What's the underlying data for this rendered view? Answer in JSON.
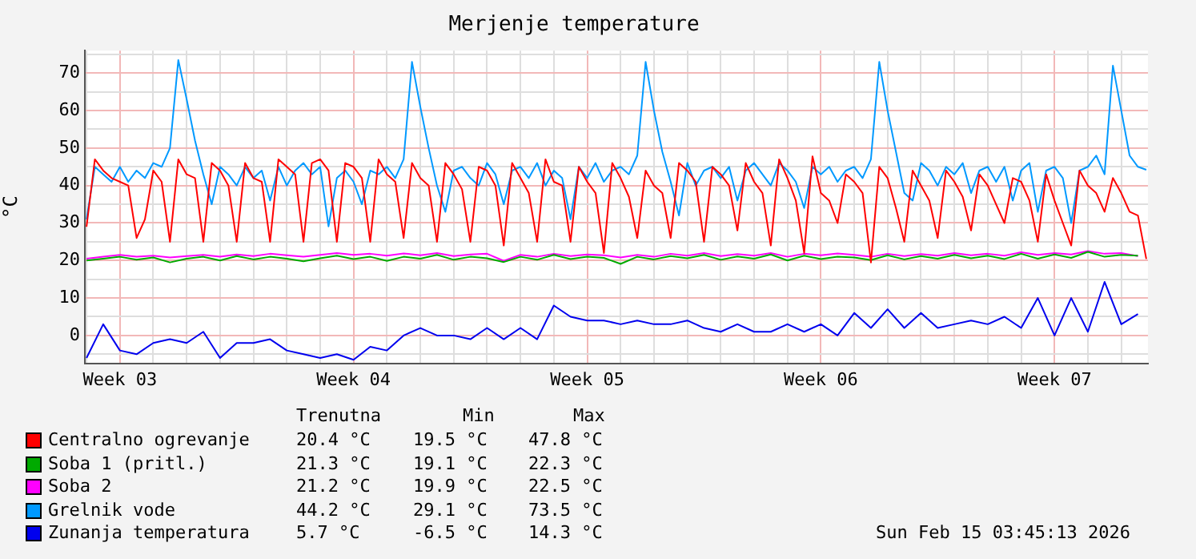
{
  "chart_data": {
    "type": "line",
    "title": "Merjenje temperature",
    "ylabel": "°C",
    "x": [
      "2026-01-11",
      "2026-01-11T06:00",
      "2026-01-11T12:00",
      "2026-01-11T18:00",
      "2026-01-12",
      "2026-01-12T06:00",
      "2026-01-12T12:00",
      "2026-01-12T18:00",
      "2026-01-13",
      "2026-01-13T06:00",
      "2026-01-13T12:00",
      "2026-01-13T18:00",
      "2026-01-14",
      "2026-01-14T06:00",
      "2026-01-14T12:00",
      "2026-01-14T18:00",
      "2026-01-15",
      "2026-01-15T06:00",
      "2026-01-15T12:00",
      "2026-01-15T18:00",
      "2026-01-16",
      "2026-01-16T06:00",
      "2026-01-16T12:00",
      "2026-01-16T18:00",
      "2026-01-17",
      "2026-01-17T06:00",
      "2026-01-17T12:00",
      "2026-01-17T18:00",
      "2026-01-18",
      "2026-01-18T06:00",
      "2026-01-18T12:00",
      "2026-01-18T18:00",
      "2026-01-19",
      "2026-01-19T06:00",
      "2026-01-19T12:00",
      "2026-01-19T18:00",
      "2026-01-20",
      "2026-01-20T06:00",
      "2026-01-20T12:00",
      "2026-01-20T18:00",
      "2026-01-21",
      "2026-01-21T06:00",
      "2026-01-21T12:00",
      "2026-01-21T18:00",
      "2026-01-22",
      "2026-01-22T06:00",
      "2026-01-22T12:00",
      "2026-01-22T18:00",
      "2026-01-23",
      "2026-01-23T06:00",
      "2026-01-23T12:00",
      "2026-01-23T18:00",
      "2026-01-24",
      "2026-01-24T06:00",
      "2026-01-24T12:00",
      "2026-01-24T18:00",
      "2026-01-25",
      "2026-01-25T06:00",
      "2026-01-25T12:00",
      "2026-01-25T18:00",
      "2026-01-26",
      "2026-01-26T06:00",
      "2026-01-26T12:00",
      "2026-01-26T18:00",
      "2026-01-27",
      "2026-01-27T06:00",
      "2026-01-27T12:00",
      "2026-01-27T18:00",
      "2026-01-28",
      "2026-01-28T06:00",
      "2026-01-28T12:00",
      "2026-01-28T18:00",
      "2026-01-29",
      "2026-01-29T06:00",
      "2026-01-29T12:00",
      "2026-01-29T18:00",
      "2026-01-30",
      "2026-01-30T06:00",
      "2026-01-30T12:00",
      "2026-01-30T18:00",
      "2026-01-31",
      "2026-01-31T06:00",
      "2026-01-31T12:00",
      "2026-01-31T18:00",
      "2026-02-01",
      "2026-02-01T06:00",
      "2026-02-01T12:00",
      "2026-02-01T18:00",
      "2026-02-02",
      "2026-02-02T06:00",
      "2026-02-02T12:00",
      "2026-02-02T18:00",
      "2026-02-03",
      "2026-02-03T06:00",
      "2026-02-03T12:00",
      "2026-02-03T18:00",
      "2026-02-04",
      "2026-02-04T06:00",
      "2026-02-04T12:00",
      "2026-02-04T18:00",
      "2026-02-05",
      "2026-02-05T06:00",
      "2026-02-05T12:00",
      "2026-02-05T18:00",
      "2026-02-06",
      "2026-02-06T06:00",
      "2026-02-06T12:00",
      "2026-02-06T18:00",
      "2026-02-07",
      "2026-02-07T06:00",
      "2026-02-07T12:00",
      "2026-02-07T18:00",
      "2026-02-08",
      "2026-02-08T06:00",
      "2026-02-08T12:00",
      "2026-02-08T18:00",
      "2026-02-09",
      "2026-02-09T06:00",
      "2026-02-09T12:00",
      "2026-02-09T18:00",
      "2026-02-10",
      "2026-02-10T06:00",
      "2026-02-10T12:00",
      "2026-02-10T18:00",
      "2026-02-11",
      "2026-02-11T06:00",
      "2026-02-11T12:00",
      "2026-02-11T18:00"
    ],
    "series": [
      {
        "name": "Centralno ogrevanje",
        "color": "#ff0000",
        "values": [
          29,
          47,
          44,
          42,
          41,
          40,
          26,
          31,
          44,
          41,
          25,
          47,
          43,
          42,
          25,
          46,
          44,
          40,
          25,
          46,
          42,
          41,
          25,
          47,
          45,
          43,
          25,
          46,
          47,
          44,
          25,
          46,
          45,
          42,
          25,
          47,
          43,
          41,
          26,
          46,
          42,
          40,
          25,
          46,
          43,
          39,
          25,
          45,
          44,
          40,
          24,
          46,
          42,
          38,
          25,
          47,
          41,
          40,
          25,
          45,
          41,
          38,
          22,
          46,
          42,
          37,
          26,
          44,
          40,
          38,
          26,
          46,
          44,
          41,
          25,
          45,
          43,
          40,
          28,
          46,
          41,
          38,
          24,
          47,
          42,
          36,
          22,
          47.8,
          38,
          36,
          30,
          43,
          41,
          38,
          19.5,
          45,
          42,
          34,
          25,
          44,
          40,
          36,
          26,
          44,
          41,
          37,
          28,
          43,
          40,
          35,
          30,
          42,
          41,
          36,
          25,
          43,
          36,
          30,
          24,
          44,
          40,
          38,
          33,
          42,
          38,
          33,
          32,
          20.4
        ]
      },
      {
        "name": "Soba 1 (pritl.)",
        "color": "#00aa00",
        "x": [
          "2026-01-11",
          "2026-01-11T12:00",
          "2026-01-12",
          "2026-01-12T12:00",
          "2026-01-13",
          "2026-01-13T12:00",
          "2026-01-14",
          "2026-01-14T12:00",
          "2026-01-15",
          "2026-01-15T12:00",
          "2026-01-16",
          "2026-01-16T12:00",
          "2026-01-17",
          "2026-01-17T12:00",
          "2026-01-18",
          "2026-01-18T12:00",
          "2026-01-19",
          "2026-01-19T12:00",
          "2026-01-20",
          "2026-01-20T12:00",
          "2026-01-21",
          "2026-01-21T12:00",
          "2026-01-22",
          "2026-01-22T12:00",
          "2026-01-23",
          "2026-01-23T12:00",
          "2026-01-24",
          "2026-01-24T12:00",
          "2026-01-25",
          "2026-01-25T12:00",
          "2026-01-26",
          "2026-01-26T12:00",
          "2026-01-27",
          "2026-01-27T12:00",
          "2026-01-28",
          "2026-01-28T12:00",
          "2026-01-29",
          "2026-01-29T12:00",
          "2026-01-30",
          "2026-01-30T12:00",
          "2026-01-31",
          "2026-01-31T12:00",
          "2026-02-01",
          "2026-02-01T12:00",
          "2026-02-02",
          "2026-02-02T12:00",
          "2026-02-03",
          "2026-02-03T12:00",
          "2026-02-04",
          "2026-02-04T12:00",
          "2026-02-05",
          "2026-02-05T12:00",
          "2026-02-06",
          "2026-02-06T12:00",
          "2026-02-07",
          "2026-02-07T12:00",
          "2026-02-08",
          "2026-02-08T12:00",
          "2026-02-09",
          "2026-02-09T12:00",
          "2026-02-10",
          "2026-02-10T12:00",
          "2026-02-11",
          "2026-02-11T12:00"
        ],
        "values": [
          20.0,
          20.5,
          21.0,
          20.2,
          20.8,
          19.5,
          20.5,
          21.0,
          20.0,
          21.2,
          20.3,
          21.0,
          20.5,
          19.8,
          20.6,
          21.3,
          20.4,
          21.0,
          19.9,
          21.0,
          20.5,
          21.5,
          20.2,
          21.0,
          20.6,
          19.6,
          21.0,
          20.2,
          21.5,
          20.4,
          21.0,
          20.7,
          19.1,
          21.0,
          20.3,
          21.2,
          20.6,
          21.5,
          20.2,
          21.1,
          20.5,
          21.6,
          20.0,
          21.3,
          20.4,
          21.0,
          20.8,
          20.1,
          21.4,
          20.3,
          21.2,
          20.5,
          21.5,
          20.6,
          21.3,
          20.4,
          21.8,
          20.5,
          21.6,
          20.7,
          22.3,
          21.0,
          21.5,
          21.3
        ]
      },
      {
        "name": "Soba 2",
        "color": "#ff00ff",
        "x": [
          "2026-01-11",
          "2026-01-11T12:00",
          "2026-01-12",
          "2026-01-12T12:00",
          "2026-01-13",
          "2026-01-13T12:00",
          "2026-01-14",
          "2026-01-14T12:00",
          "2026-01-15",
          "2026-01-15T12:00",
          "2026-01-16",
          "2026-01-16T12:00",
          "2026-01-17",
          "2026-01-17T12:00",
          "2026-01-18",
          "2026-01-18T12:00",
          "2026-01-19",
          "2026-01-19T12:00",
          "2026-01-20",
          "2026-01-20T12:00",
          "2026-01-21",
          "2026-01-21T12:00",
          "2026-01-22",
          "2026-01-22T12:00",
          "2026-01-23",
          "2026-01-23T12:00",
          "2026-01-24",
          "2026-01-24T12:00",
          "2026-01-25",
          "2026-01-25T12:00",
          "2026-01-26",
          "2026-01-26T12:00",
          "2026-01-27",
          "2026-01-27T12:00",
          "2026-01-28",
          "2026-01-28T12:00",
          "2026-01-29",
          "2026-01-29T12:00",
          "2026-01-30",
          "2026-01-30T12:00",
          "2026-01-31",
          "2026-01-31T12:00",
          "2026-02-01",
          "2026-02-01T12:00",
          "2026-02-02",
          "2026-02-02T12:00",
          "2026-02-03",
          "2026-02-03T12:00",
          "2026-02-04",
          "2026-02-04T12:00",
          "2026-02-05",
          "2026-02-05T12:00",
          "2026-02-06",
          "2026-02-06T12:00",
          "2026-02-07",
          "2026-02-07T12:00",
          "2026-02-08",
          "2026-02-08T12:00",
          "2026-02-09",
          "2026-02-09T12:00",
          "2026-02-10",
          "2026-02-10T12:00",
          "2026-02-11",
          "2026-02-11T12:00"
        ],
        "values": [
          20.5,
          21.0,
          21.5,
          21.0,
          21.3,
          20.8,
          21.2,
          21.5,
          21.0,
          21.6,
          21.2,
          21.8,
          21.4,
          21.0,
          21.5,
          22.0,
          21.5,
          21.8,
          21.3,
          21.9,
          21.4,
          22.0,
          21.2,
          21.6,
          21.8,
          19.9,
          21.5,
          21.0,
          21.8,
          21.2,
          21.6,
          21.4,
          20.8,
          21.5,
          21.0,
          21.8,
          21.3,
          22.0,
          21.2,
          21.7,
          21.3,
          22.0,
          21.0,
          21.8,
          21.4,
          21.9,
          21.5,
          21.0,
          21.8,
          21.2,
          21.7,
          21.3,
          22.0,
          21.4,
          21.8,
          21.3,
          22.2,
          21.5,
          22.0,
          21.6,
          22.5,
          21.8,
          22.0,
          21.2
        ]
      },
      {
        "name": "Grelnik vode",
        "color": "#0099ff",
        "values": [
          31,
          45,
          43,
          41,
          45,
          41,
          44,
          42,
          46,
          45,
          50,
          73.5,
          63,
          52,
          43,
          35,
          45,
          43,
          40,
          45,
          42,
          44,
          36,
          45,
          40,
          44,
          46,
          43,
          45,
          29.1,
          42,
          44,
          41,
          35,
          44,
          43,
          45,
          42,
          47,
          73,
          61,
          50,
          40,
          33,
          44,
          45,
          42,
          40,
          46,
          43,
          35,
          44,
          45,
          42,
          46,
          40,
          44,
          42,
          31,
          45,
          42,
          46,
          41,
          44,
          45,
          43,
          48,
          73,
          60,
          49,
          41,
          32,
          46,
          40,
          44,
          45,
          42,
          45,
          36,
          44,
          46,
          43,
          40,
          46,
          44,
          41,
          34,
          45,
          43,
          45,
          41,
          44,
          45,
          42,
          47,
          73,
          60,
          49,
          38,
          36,
          46,
          44,
          40,
          45,
          43,
          46,
          38,
          44,
          45,
          41,
          45,
          36,
          44,
          46,
          33,
          44,
          45,
          42,
          30,
          44,
          45,
          48,
          43,
          72,
          60,
          48,
          45,
          44.2
        ]
      },
      {
        "name": "Zunanja temperatura",
        "color": "#0000ee",
        "x": [
          "2026-01-11",
          "2026-01-11T12:00",
          "2026-01-12",
          "2026-01-12T12:00",
          "2026-01-13",
          "2026-01-13T12:00",
          "2026-01-14",
          "2026-01-14T12:00",
          "2026-01-15",
          "2026-01-15T12:00",
          "2026-01-16",
          "2026-01-16T12:00",
          "2026-01-17",
          "2026-01-17T12:00",
          "2026-01-18",
          "2026-01-18T12:00",
          "2026-01-19",
          "2026-01-19T12:00",
          "2026-01-20",
          "2026-01-20T12:00",
          "2026-01-21",
          "2026-01-21T12:00",
          "2026-01-22",
          "2026-01-22T12:00",
          "2026-01-23",
          "2026-01-23T12:00",
          "2026-01-24",
          "2026-01-24T12:00",
          "2026-01-25",
          "2026-01-25T12:00",
          "2026-01-26",
          "2026-01-26T12:00",
          "2026-01-27",
          "2026-01-27T12:00",
          "2026-01-28",
          "2026-01-28T12:00",
          "2026-01-29",
          "2026-01-29T12:00",
          "2026-01-30",
          "2026-01-30T12:00",
          "2026-01-31",
          "2026-01-31T12:00",
          "2026-02-01",
          "2026-02-01T12:00",
          "2026-02-02",
          "2026-02-02T12:00",
          "2026-02-03",
          "2026-02-03T12:00",
          "2026-02-04",
          "2026-02-04T12:00",
          "2026-02-05",
          "2026-02-05T12:00",
          "2026-02-06",
          "2026-02-06T12:00",
          "2026-02-07",
          "2026-02-07T12:00",
          "2026-02-08",
          "2026-02-08T12:00",
          "2026-02-09",
          "2026-02-09T12:00",
          "2026-02-10",
          "2026-02-10T12:00",
          "2026-02-11",
          "2026-02-11T12:00"
        ],
        "values": [
          -6,
          3,
          -4,
          -5,
          -2,
          -1,
          -2,
          1,
          -6,
          -2,
          -2,
          -1,
          -4,
          -5,
          -6,
          -5,
          -6.5,
          -3,
          -4,
          0,
          2,
          0,
          0,
          -1,
          2,
          -1,
          2,
          -1,
          8,
          5,
          4,
          4,
          3,
          4,
          3,
          3,
          4,
          2,
          1,
          3,
          1,
          1,
          3,
          1,
          3,
          0,
          6,
          2,
          7,
          2,
          6,
          2,
          3,
          4,
          3,
          5,
          2,
          10,
          0,
          10,
          1,
          14.3,
          3,
          5.7
        ]
      }
    ],
    "xlim": [
      "2026-01-10T22:48",
      "2026-02-11T19:12"
    ],
    "xticks": [
      {
        "value": "2026-01-11",
        "label": null
      },
      {
        "value": "2026-01-12",
        "label": "Week 03"
      },
      {
        "value": "2026-01-13",
        "label": null
      },
      {
        "value": "2026-01-14",
        "label": null
      },
      {
        "value": "2026-01-15",
        "label": null
      },
      {
        "value": "2026-01-16",
        "label": null
      },
      {
        "value": "2026-01-17",
        "label": null
      },
      {
        "value": "2026-01-18",
        "label": null
      },
      {
        "value": "2026-01-19",
        "label": "Week 04"
      },
      {
        "value": "2026-01-20",
        "label": null
      },
      {
        "value": "2026-01-21",
        "label": null
      },
      {
        "value": "2026-01-22",
        "label": null
      },
      {
        "value": "2026-01-23",
        "label": null
      },
      {
        "value": "2026-01-24",
        "label": null
      },
      {
        "value": "2026-01-25",
        "label": null
      },
      {
        "value": "2026-01-26",
        "label": "Week 05"
      },
      {
        "value": "2026-01-27",
        "label": null
      },
      {
        "value": "2026-01-28",
        "label": null
      },
      {
        "value": "2026-01-29",
        "label": null
      },
      {
        "value": "2026-01-30",
        "label": null
      },
      {
        "value": "2026-01-31",
        "label": null
      },
      {
        "value": "2026-02-01",
        "label": null
      },
      {
        "value": "2026-02-02",
        "label": "Week 06"
      },
      {
        "value": "2026-02-03",
        "label": null
      },
      {
        "value": "2026-02-04",
        "label": null
      },
      {
        "value": "2026-02-05",
        "label": null
      },
      {
        "value": "2026-02-06",
        "label": null
      },
      {
        "value": "2026-02-07",
        "label": null
      },
      {
        "value": "2026-02-08",
        "label": null
      },
      {
        "value": "2026-02-09",
        "label": "Week 07"
      },
      {
        "value": "2026-02-10",
        "label": null
      },
      {
        "value": "2026-02-11",
        "label": null
      }
    ],
    "ylim": [
      -7.5,
      76
    ],
    "yticks": [
      {
        "value": -5,
        "label": null
      },
      0,
      {
        "value": 5,
        "label": null
      },
      10,
      {
        "value": 15,
        "label": null
      },
      20,
      {
        "value": 25,
        "label": null
      },
      30,
      {
        "value": 35,
        "label": null
      },
      40,
      {
        "value": 45,
        "label": null
      },
      50,
      {
        "value": 55,
        "label": null
      },
      60,
      {
        "value": 65,
        "label": null
      },
      70,
      {
        "value": 75,
        "label": null
      }
    ],
    "grid": true,
    "legend": "bottom left",
    "marker": "none",
    "line_style": "solid",
    "annotations": [
      "Trenutna",
      "Min",
      "Max",
      "20.4 °C",
      "19.5 °C",
      "47.8 °C",
      "21.3 °C",
      "19.1 °C",
      "22.3 °C",
      "21.2 °C",
      "19.9 °C",
      "22.5 °C",
      "44.2 °C",
      "29.1 °C",
      "73.5 °C",
      "5.7 °C",
      "-6.5 °C",
      "14.3 °C",
      "Sun Feb 15 03:45:13 2026"
    ]
  }
}
